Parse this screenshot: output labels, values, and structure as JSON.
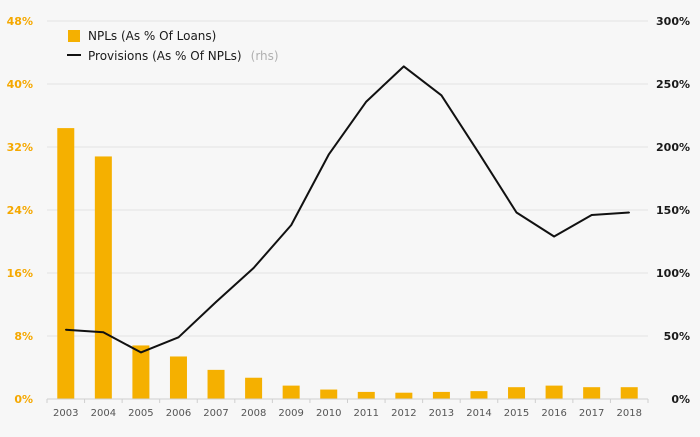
{
  "chart_data": {
    "type": "bar+line",
    "categories": [
      "2003",
      "2004",
      "2005",
      "2006",
      "2007",
      "2008",
      "2009",
      "2010",
      "2011",
      "2012",
      "2013",
      "2014",
      "2015",
      "2016",
      "2017",
      "2018"
    ],
    "series": [
      {
        "name": "NPLs (As % Of Loans)",
        "type": "bar",
        "axis": "left",
        "color": "#f5b000",
        "values": [
          34.4,
          30.8,
          6.8,
          5.4,
          3.7,
          2.7,
          1.7,
          1.2,
          0.9,
          0.8,
          0.9,
          1.0,
          1.5,
          1.7,
          1.5,
          1.5
        ]
      },
      {
        "name": "Provisions (As % Of NPLs)",
        "name_suffix": "(rhs)",
        "type": "line",
        "axis": "right",
        "color": "#111111",
        "values": [
          55,
          53,
          37,
          49,
          77,
          104,
          138,
          194,
          236,
          264,
          241,
          195,
          148,
          129,
          146,
          148
        ]
      }
    ],
    "yaxis_left": {
      "ticks": [
        0,
        8,
        16,
        24,
        32,
        40,
        48
      ],
      "labels": [
        "0%",
        "8%",
        "16%",
        "24%",
        "32%",
        "40%",
        "48%"
      ],
      "range": [
        0,
        48
      ],
      "color": "#f5a800"
    },
    "yaxis_right": {
      "ticks": [
        0,
        50,
        100,
        150,
        200,
        250,
        300
      ],
      "labels": [
        "0%",
        "50%",
        "100%",
        "150%",
        "200%",
        "250%",
        "300%"
      ],
      "range": [
        0,
        300
      ],
      "color": "#1a1a1a"
    },
    "grid": true,
    "legend_position": "top-left"
  }
}
